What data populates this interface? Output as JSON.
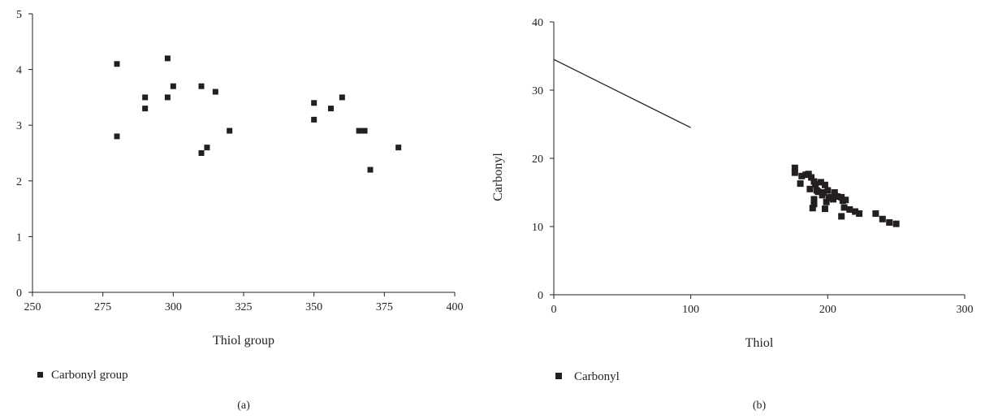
{
  "chart_data": [
    {
      "type": "scatter",
      "panel_label": "(a)",
      "xlabel": "Thiol group",
      "ylabel": "",
      "xlim": [
        250,
        400
      ],
      "ylim": [
        0,
        5
      ],
      "xticks": [
        "250",
        "275",
        "300",
        "325",
        "350",
        "375",
        "400"
      ],
      "yticks": [
        "0",
        "1",
        "2",
        "3",
        "4",
        "5"
      ],
      "grid": false,
      "legend_position": "bottom-left",
      "marker": "square",
      "series": [
        {
          "name": "Carbonyl group",
          "points": [
            [
              280,
              4.1
            ],
            [
              280,
              2.8
            ],
            [
              290,
              3.5
            ],
            [
              290,
              3.3
            ],
            [
              298,
              4.2
            ],
            [
              298,
              3.5
            ],
            [
              300,
              3.7
            ],
            [
              310,
              3.7
            ],
            [
              310,
              2.5
            ],
            [
              312,
              2.6
            ],
            [
              315,
              3.6
            ],
            [
              320,
              2.9
            ],
            [
              350,
              3.4
            ],
            [
              350,
              3.1
            ],
            [
              356,
              3.3
            ],
            [
              360,
              3.5
            ],
            [
              366,
              2.9
            ],
            [
              368,
              2.9
            ],
            [
              370,
              2.2
            ],
            [
              380,
              2.6
            ]
          ]
        }
      ]
    },
    {
      "type": "scatter",
      "panel_label": "(b)",
      "xlabel": "Thiol",
      "ylabel": "Carbonyl",
      "xlim": [
        0,
        300
      ],
      "ylim": [
        0,
        40
      ],
      "xticks": [
        "0",
        "100",
        "200",
        "300"
      ],
      "yticks": [
        "0",
        "10",
        "20",
        "30",
        "40"
      ],
      "grid": false,
      "legend_position": "bottom-left",
      "marker": "square",
      "series": [
        {
          "name": "Carbonyl",
          "points": [
            [
              176,
              18.6
            ],
            [
              176,
              17.9
            ],
            [
              180,
              16.3
            ],
            [
              181,
              17.4
            ],
            [
              184,
              17.6
            ],
            [
              186,
              17.7
            ],
            [
              187,
              15.5
            ],
            [
              188,
              17.2
            ],
            [
              189,
              12.7
            ],
            [
              190,
              16.6
            ],
            [
              190,
              14.0
            ],
            [
              190,
              13.3
            ],
            [
              191,
              16.2
            ],
            [
              192,
              15.3
            ],
            [
              193,
              15.1
            ],
            [
              195,
              16.5
            ],
            [
              196,
              14.6
            ],
            [
              197,
              15.0
            ],
            [
              198,
              16.1
            ],
            [
              198,
              12.6
            ],
            [
              199,
              13.6
            ],
            [
              200,
              15.3
            ],
            [
              201,
              14.2
            ],
            [
              202,
              14.3
            ],
            [
              204,
              14.0
            ],
            [
              205,
              14.6
            ],
            [
              205,
              15.0
            ],
            [
              207,
              14.4
            ],
            [
              210,
              14.3
            ],
            [
              210,
              11.5
            ],
            [
              211,
              13.8
            ],
            [
              212,
              12.8
            ],
            [
              213,
              13.9
            ],
            [
              216,
              12.5
            ],
            [
              220,
              12.2
            ],
            [
              223,
              11.9
            ],
            [
              235,
              11.9
            ],
            [
              240,
              11.1
            ],
            [
              245,
              10.6
            ],
            [
              250,
              10.4
            ]
          ]
        },
        {
          "name": "",
          "kind": "line",
          "points": [
            [
              0,
              34.5
            ],
            [
              100,
              24.5
            ]
          ]
        }
      ]
    }
  ]
}
